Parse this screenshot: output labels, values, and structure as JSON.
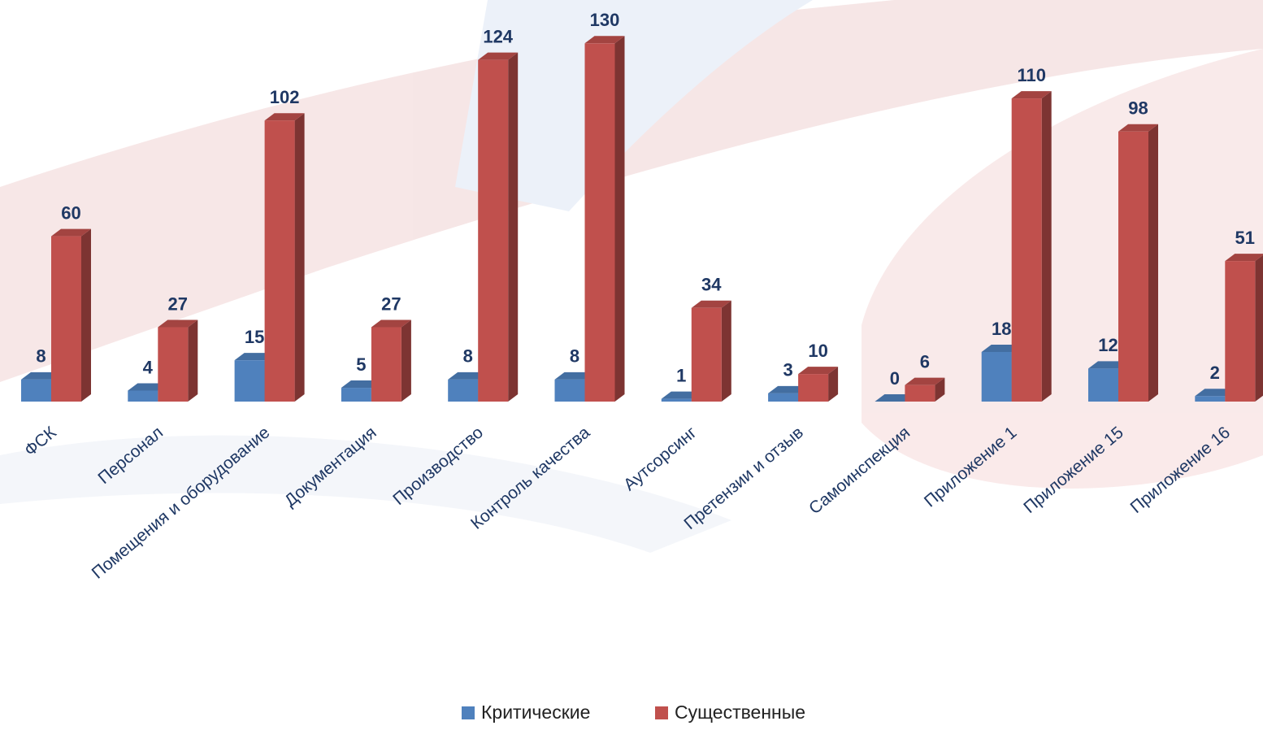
{
  "chart_data": {
    "type": "bar3d",
    "categories": [
      "ФСК",
      "Персонал",
      "Помещения и оборудование",
      "Документация",
      "Производство",
      "Контроль качества",
      "Аутсорсинг",
      "Претензии и отзыв",
      "Самоинспекция",
      "Приложение 1",
      "Приложение 15",
      "Приложение 16"
    ],
    "series": [
      {
        "name": "Критические",
        "color": "#4f81bd",
        "values": [
          8,
          4,
          15,
          5,
          8,
          8,
          1,
          3,
          0,
          18,
          12,
          2
        ]
      },
      {
        "name": "Существенные",
        "color": "#c0504d",
        "values": [
          60,
          27,
          102,
          27,
          124,
          130,
          34,
          10,
          6,
          110,
          98,
          51
        ]
      }
    ]
  }
}
